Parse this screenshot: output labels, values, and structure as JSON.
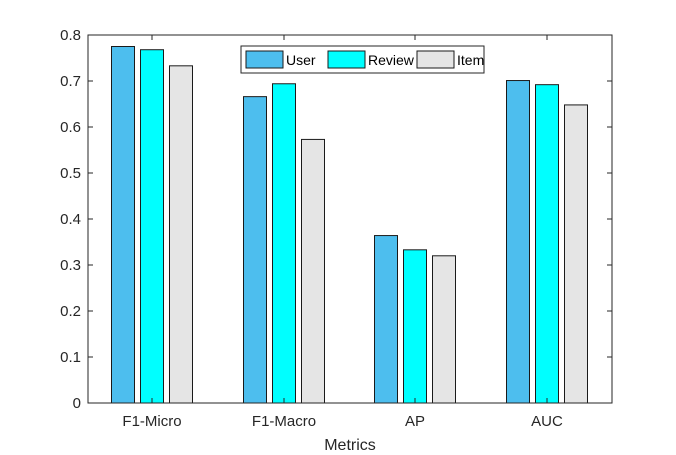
{
  "chart_data": {
    "type": "bar",
    "title": "",
    "xlabel": "Metrics",
    "ylabel": "",
    "categories": [
      "F1-Micro",
      "F1-Macro",
      "AP",
      "AUC"
    ],
    "series": [
      {
        "name": "User",
        "color": "#4DBEEE",
        "values": [
          0.775,
          0.666,
          0.364,
          0.701
        ]
      },
      {
        "name": "Review",
        "color": "#00FFFF",
        "values": [
          0.768,
          0.694,
          0.333,
          0.692
        ]
      },
      {
        "name": "Item",
        "color": "#E5E5E5",
        "values": [
          0.733,
          0.573,
          0.32,
          0.648
        ]
      }
    ],
    "ylim": [
      0,
      0.8
    ],
    "yticks": [
      "0",
      "0.1",
      "0.2",
      "0.3",
      "0.4",
      "0.5",
      "0.6",
      "0.7",
      "0.8"
    ],
    "grid": false,
    "legend_position": "top-center"
  }
}
